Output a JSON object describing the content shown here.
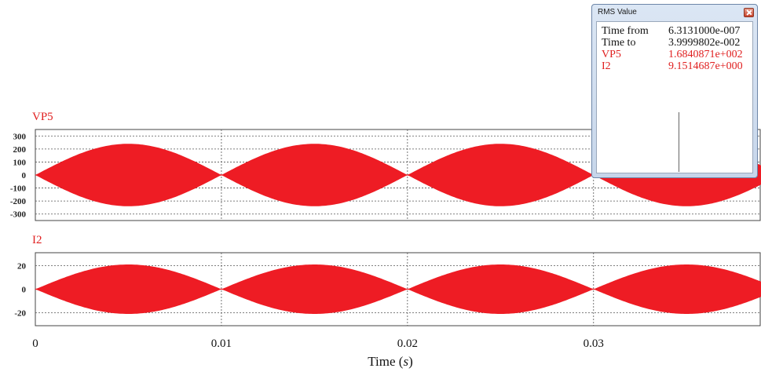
{
  "chart_data": [
    {
      "type": "line",
      "title": "VP5",
      "xlabel": "",
      "ylabel": "",
      "xlim": [
        0,
        0.039
      ],
      "ylim": [
        -350,
        350
      ],
      "yticks": [
        "300",
        "200",
        "100",
        "0",
        "-100",
        "-200",
        "-300"
      ],
      "ytick_values": [
        300,
        200,
        100,
        0,
        -100,
        -200,
        -300
      ],
      "series": [
        {
          "envelope_amplitude": 240,
          "envelope_period": 0.01,
          "color": "#ee1c24"
        }
      ]
    },
    {
      "type": "line",
      "title": "I2",
      "xlabel": "Time (s)",
      "ylabel": "",
      "xlim": [
        0,
        0.039
      ],
      "ylim": [
        -31,
        31
      ],
      "yticks": [
        "20",
        "0",
        "-20"
      ],
      "ytick_values": [
        20,
        0,
        -20
      ],
      "series": [
        {
          "envelope_amplitude": 21,
          "envelope_period": 0.01,
          "color": "#ee1c24"
        }
      ]
    }
  ],
  "x_axis": {
    "ticks": [
      "0",
      "0.01",
      "0.02",
      "0.03"
    ],
    "tick_values": [
      0,
      0.01,
      0.02,
      0.03
    ],
    "label_prefix": "Time (",
    "label_unit": "s",
    "label_suffix": ")"
  },
  "rms_window": {
    "title": "RMS Value",
    "rows": [
      {
        "label": "Time from",
        "value": "6.3131000e-007",
        "color": "black"
      },
      {
        "label": "Time to",
        "value": "3.9999802e-002",
        "color": "black"
      },
      {
        "label": "VP5",
        "value": "1.6840871e+002",
        "color": "red"
      },
      {
        "label": "I2",
        "value": "9.1514687e+000",
        "color": "red"
      }
    ]
  }
}
